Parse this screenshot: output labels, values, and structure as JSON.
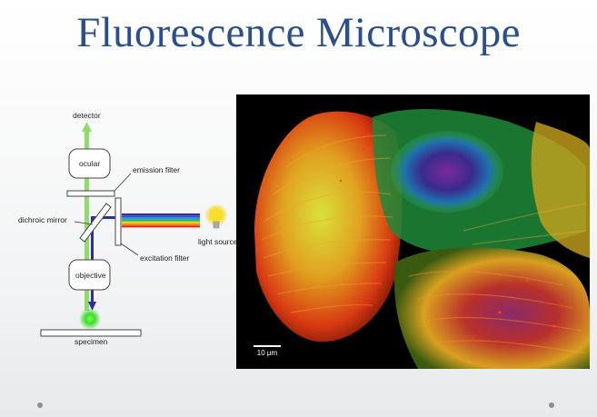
{
  "slide": {
    "title": "Fluorescence Microscope"
  },
  "diagram": {
    "labels": {
      "detector": "detector",
      "ocular": "ocular",
      "emission_filter": "emission filter",
      "dichroic_mirror": "dichroic mirror",
      "light_source": "light source",
      "excitation_filter": "excitation filter",
      "objective": "objective",
      "specimen": "specimen"
    },
    "colors": {
      "emission_light": "#8fdc6c",
      "excitation_light": "#2d2f9e",
      "specimen_glow": "#3ddc2e",
      "bulb": "#f3d21c"
    },
    "spectrum_colors": [
      "#4a1fa0",
      "#2d4fd8",
      "#1f9fd8",
      "#2fb84a",
      "#e8d020",
      "#f08a1a",
      "#e02a1a"
    ]
  },
  "photo": {
    "scale_bar_label": "10 µm"
  }
}
